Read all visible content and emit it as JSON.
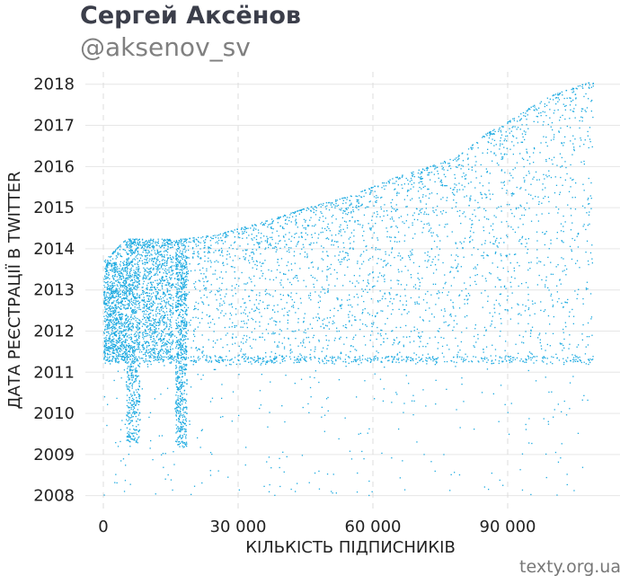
{
  "header": {
    "title": "Сергей Аксёнов",
    "subtitle": "@aksenov_sv"
  },
  "footer": {
    "credit": "texty.org.ua"
  },
  "chart_data": {
    "type": "scatter",
    "xlabel": "КІЛЬКІСТЬ ПІДПИСНИКІВ",
    "ylabel": "ДАТА РЕЄСТРАЦІЇ В TWITTER",
    "xlim": [
      -4000,
      115000
    ],
    "ylim": [
      2007.6,
      2018.3
    ],
    "x_ticks": [
      0,
      30000,
      60000,
      90000
    ],
    "x_tick_labels": [
      "0",
      "30 000",
      "60 000",
      "90 000"
    ],
    "y_ticks": [
      2008,
      2009,
      2010,
      2011,
      2012,
      2013,
      2014,
      2015,
      2016,
      2017,
      2018
    ],
    "y_tick_labels": [
      "2008",
      "2009",
      "2010",
      "2011",
      "2012",
      "2013",
      "2014",
      "2015",
      "2016",
      "2017",
      "2018"
    ],
    "grid": true,
    "color": "#1aa9e0",
    "upper_envelope": {
      "x": [
        0,
        5000,
        8000,
        12000,
        18000,
        25000,
        35000,
        45000,
        55000,
        65000,
        75000,
        80000,
        85000,
        90000,
        95000,
        100000,
        109000
      ],
      "y": [
        2013.7,
        2014.25,
        2014.25,
        2014.25,
        2014.25,
        2014.35,
        2014.65,
        2015.0,
        2015.3,
        2015.75,
        2016.1,
        2016.35,
        2016.8,
        2017.1,
        2017.45,
        2017.75,
        2018.1
      ]
    },
    "dense_columns": [
      {
        "x": [
          0,
          5000
        ],
        "y": [
          2011.3,
          2013.7
        ]
      },
      {
        "x": [
          8500,
          15500
        ],
        "y": [
          2011.3,
          2014.25
        ]
      },
      {
        "x": [
          5000,
          8000
        ],
        "y": [
          2009.3,
          2014.25
        ]
      },
      {
        "x": [
          16000,
          18500
        ],
        "y": [
          2009.2,
          2014.25
        ]
      }
    ]
  }
}
